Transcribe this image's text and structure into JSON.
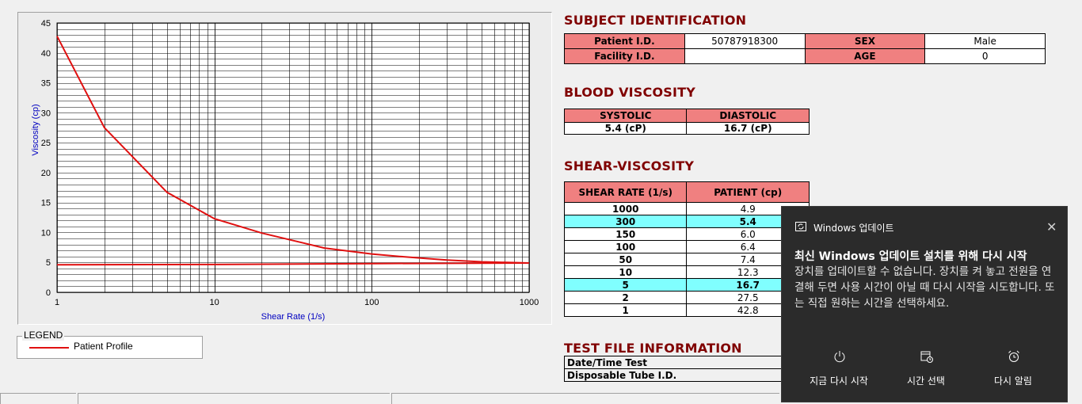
{
  "chart_data": {
    "type": "line",
    "xlabel": "Shear Rate (1/s)",
    "ylabel": "Viscosity (cp)",
    "xscale": "log",
    "xlim": [
      1,
      1000
    ],
    "ylim": [
      0,
      45
    ],
    "x_ticks": [
      1,
      10,
      100,
      1000
    ],
    "y_ticks": [
      0,
      5,
      10,
      15,
      20,
      25,
      30,
      35,
      40,
      45
    ],
    "grid": true,
    "series": [
      {
        "name": "Patient Profile",
        "color": "#e01010",
        "x": [
          1,
          2,
          5,
          10,
          20,
          50,
          100,
          150,
          300,
          500,
          1000
        ],
        "y": [
          42.8,
          27.5,
          16.7,
          12.3,
          9.9,
          7.4,
          6.4,
          6.0,
          5.4,
          5.1,
          4.9
        ]
      },
      {
        "name": "Patient Profile",
        "color": "#e01010",
        "x": [
          1,
          10,
          100,
          1000
        ],
        "y": [
          4.6,
          4.65,
          4.8,
          4.9
        ]
      }
    ]
  },
  "legend": {
    "title": "LEGEND",
    "label": "Patient Profile",
    "color": "#e01010"
  },
  "subject": {
    "title": "SUBJECT IDENTIFICATION",
    "patient_id_label": "Patient I.D.",
    "patient_id": "50787918300",
    "sex_label": "SEX",
    "sex": "Male",
    "facility_label": "Facility I.D.",
    "facility": "",
    "age_label": "AGE",
    "age": "0"
  },
  "blood": {
    "title": "BLOOD VISCOSITY",
    "systolic_label": "SYSTOLIC",
    "diastolic_label": "DIASTOLIC",
    "systolic": "5.4 (cP)",
    "diastolic": "16.7 (cP)"
  },
  "shear": {
    "title": "SHEAR-VISCOSITY",
    "col_rate": "SHEAR RATE (1/s)",
    "col_patient": "PATIENT (cp)",
    "rows": [
      {
        "rate": "1000",
        "value": "4.9"
      },
      {
        "rate": "300",
        "value": "5.4"
      },
      {
        "rate": "150",
        "value": "6.0"
      },
      {
        "rate": "100",
        "value": "6.4"
      },
      {
        "rate": "50",
        "value": "7.4"
      },
      {
        "rate": "10",
        "value": "12.3"
      },
      {
        "rate": "5",
        "value": "16.7"
      },
      {
        "rate": "2",
        "value": "27.5"
      },
      {
        "rate": "1",
        "value": "42.8"
      }
    ]
  },
  "file": {
    "title": "TEST FILE INFORMATION",
    "datetime_label": "Date/Time Test",
    "tube_label": "Disposable Tube I.D."
  },
  "toast": {
    "app": "Windows 업데이트",
    "title": "최신 Windows 업데이트 설치를 위해 다시 시작",
    "body": "장치를 업데이트할 수 없습니다. 장치를 켜 놓고 전원을 연결해 두면 사용 시간이 아닐 때 다시 시작을 시도합니다. 또는 직접 원하는 시간을 선택하세요.",
    "btn_restart": "지금 다시 시작",
    "btn_schedule": "시간 선택",
    "btn_snooze": "다시 알림",
    "close_icon": "close-icon",
    "bg": "#2b2b2b"
  }
}
